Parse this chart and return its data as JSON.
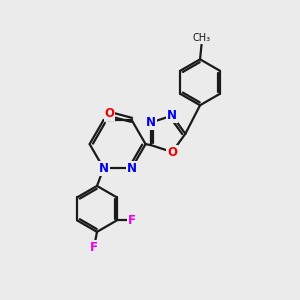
{
  "bg_color": "#ebebeb",
  "bond_color": "#1a1a1a",
  "bond_width": 1.6,
  "atom_colors": {
    "N": "#0000ee",
    "O": "#ee0000",
    "F": "#ee00ee",
    "C": "#1a1a1a"
  },
  "font_size": 8.5
}
